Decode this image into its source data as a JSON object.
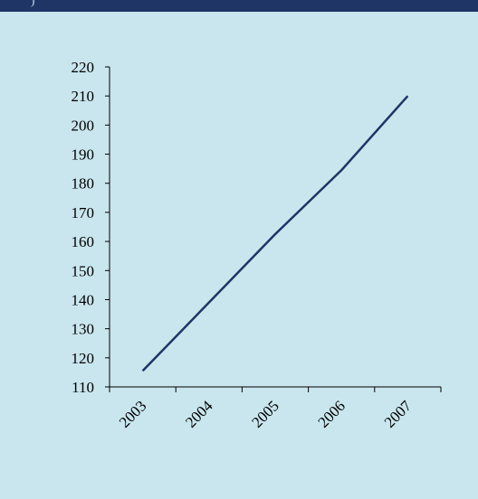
{
  "header": {
    "fragment_text": ")"
  },
  "colors": {
    "background": "#c9e6ee",
    "header_strip": "#1f3566",
    "line": "#1f3566",
    "axis": "#000000"
  },
  "chart_data": {
    "type": "line",
    "title": "",
    "xlabel": "",
    "ylabel": "",
    "categories": [
      "2003",
      "2004",
      "2005",
      "2006",
      "2007"
    ],
    "series": [
      {
        "values": [
          115.5,
          139,
          162.5,
          184.5,
          210
        ]
      }
    ],
    "ylim": [
      110,
      220
    ],
    "yticks": [
      110,
      120,
      130,
      140,
      150,
      160,
      170,
      180,
      190,
      200,
      210,
      220
    ],
    "grid": false,
    "legend": "none"
  }
}
